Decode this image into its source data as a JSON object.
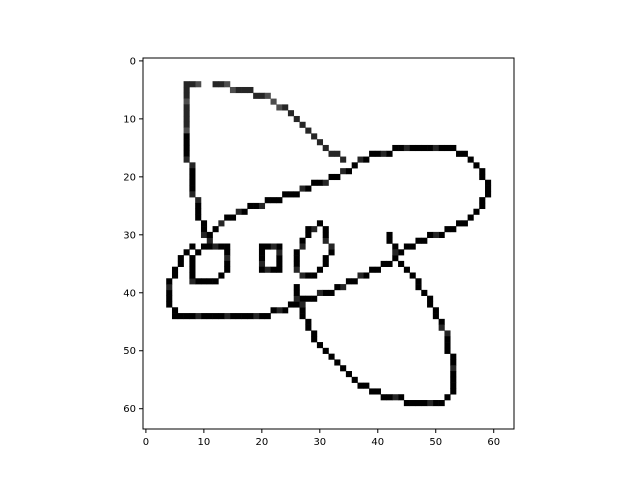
{
  "chart_data": {
    "type": "heatmap",
    "colormap": "gray_r",
    "grid": false,
    "xlim": [
      -0.5,
      63.5
    ],
    "ylim": [
      63.5,
      -0.5
    ],
    "xticks": [
      0,
      10,
      20,
      30,
      40,
      50,
      60
    ],
    "yticks": [
      0,
      10,
      20,
      30,
      40,
      50,
      60
    ],
    "xtick_labels": [
      "0",
      "10",
      "20",
      "30",
      "40",
      "50",
      "60"
    ],
    "ytick_labels": [
      "0",
      "10",
      "20",
      "30",
      "40",
      "50",
      "60"
    ],
    "strokes": [
      {
        "intensity": 0.85,
        "points": [
          [
            9,
            4
          ],
          [
            7,
            4
          ],
          [
            7,
            13
          ]
        ]
      },
      {
        "intensity": 1.0,
        "points": [
          [
            7,
            13
          ],
          [
            8,
            22
          ],
          [
            10,
            30
          ],
          [
            11,
            32
          ]
        ]
      },
      {
        "intensity": 0.85,
        "points": [
          [
            12,
            4
          ],
          [
            17,
            5
          ],
          [
            21,
            6
          ],
          [
            25,
            9
          ],
          [
            28,
            12
          ],
          [
            31,
            15
          ],
          [
            34,
            17
          ]
        ]
      },
      {
        "intensity": 1.0,
        "points": [
          [
            11,
            30
          ],
          [
            14,
            27
          ],
          [
            19,
            25
          ],
          [
            25,
            23
          ],
          [
            30,
            21
          ],
          [
            33,
            20
          ],
          [
            39,
            16
          ],
          [
            45,
            15
          ],
          [
            53,
            15
          ],
          [
            56,
            17
          ],
          [
            58,
            19
          ],
          [
            59,
            23
          ],
          [
            56,
            27
          ],
          [
            50,
            30
          ],
          [
            45,
            32
          ],
          [
            43,
            34
          ],
          [
            38,
            37
          ],
          [
            31,
            40
          ],
          [
            27,
            41
          ],
          [
            23,
            43
          ],
          [
            20,
            44
          ],
          [
            14,
            44
          ],
          [
            10,
            44
          ],
          [
            5,
            44
          ],
          [
            4,
            42
          ],
          [
            4,
            38
          ],
          [
            6,
            34
          ],
          [
            8,
            32
          ]
        ]
      },
      {
        "intensity": 1.0,
        "points": [
          [
            42,
            30
          ],
          [
            43,
            34
          ],
          [
            45,
            36
          ],
          [
            48,
            40
          ],
          [
            50,
            43
          ],
          [
            52,
            48
          ],
          [
            53,
            54
          ],
          [
            53,
            57
          ],
          [
            51,
            59
          ],
          [
            47,
            59
          ],
          [
            43,
            58
          ],
          [
            39,
            57
          ],
          [
            36,
            55
          ],
          [
            33,
            52
          ],
          [
            30,
            49
          ],
          [
            28,
            46
          ],
          [
            27,
            43
          ],
          [
            26,
            41
          ],
          [
            26,
            39
          ]
        ]
      },
      {
        "intensity": 1.0,
        "points": [
          [
            10,
            32
          ],
          [
            14,
            32
          ],
          [
            14,
            36
          ],
          [
            12,
            38
          ],
          [
            8,
            38
          ],
          [
            8,
            34
          ],
          [
            10,
            32
          ]
        ]
      },
      {
        "intensity": 1.0,
        "points": [
          [
            20,
            32
          ],
          [
            20,
            36
          ],
          [
            23,
            36
          ],
          [
            23,
            32
          ],
          [
            21,
            32
          ]
        ]
      },
      {
        "intensity": 1.0,
        "points": [
          [
            26,
            33
          ],
          [
            26,
            36
          ],
          [
            28,
            37
          ],
          [
            30,
            36
          ],
          [
            32,
            33
          ],
          [
            31,
            30
          ],
          [
            30,
            28
          ],
          [
            28,
            29
          ],
          [
            26,
            33
          ]
        ]
      }
    ]
  }
}
